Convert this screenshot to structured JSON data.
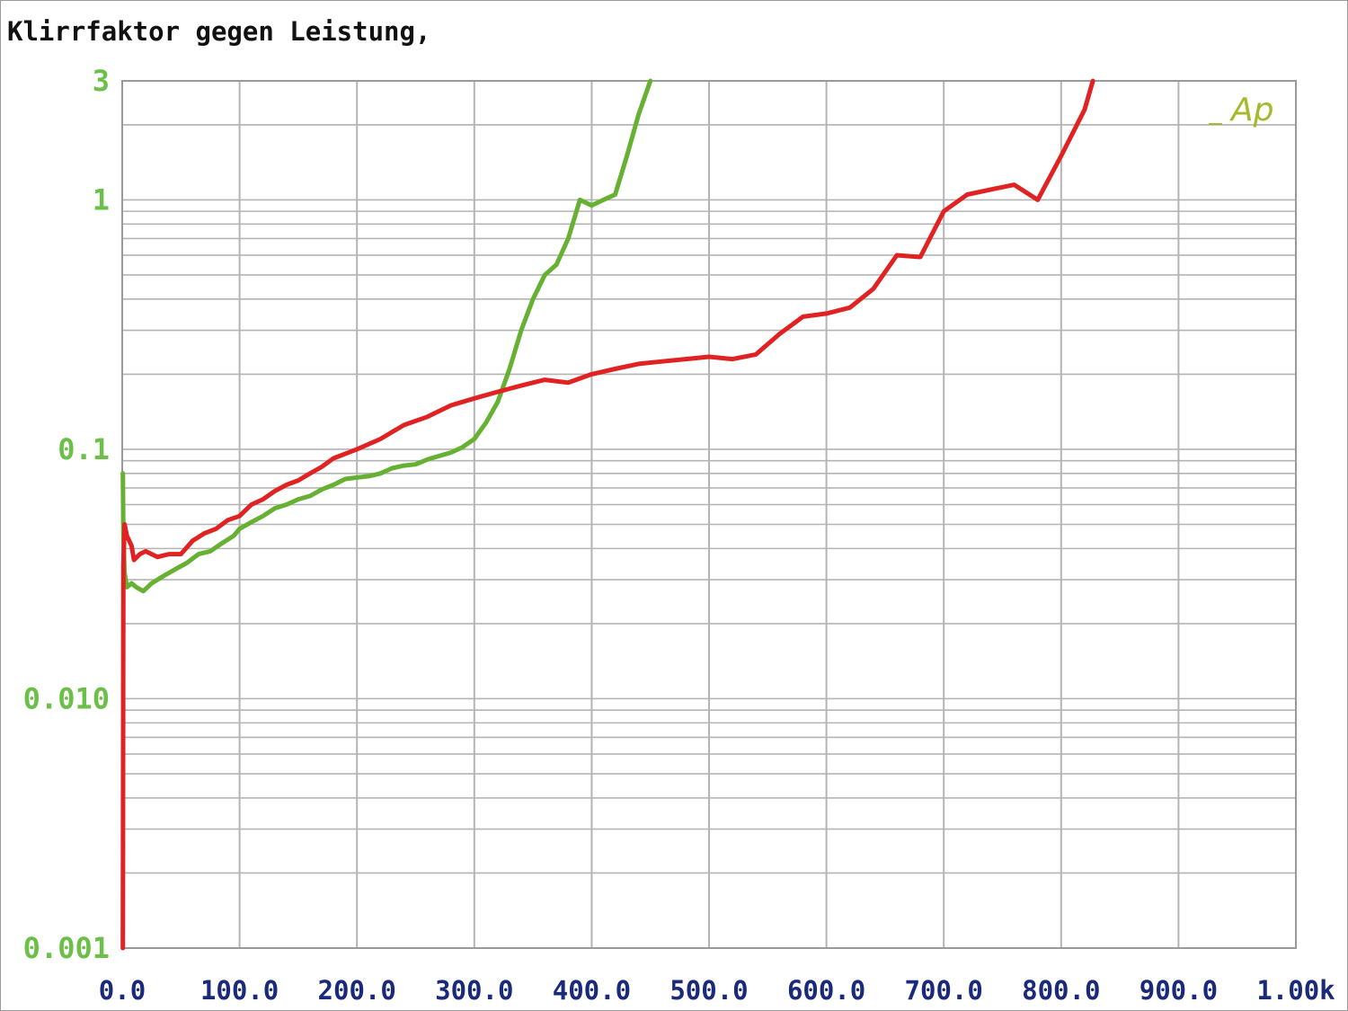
{
  "chart_data": {
    "type": "line",
    "title": "Klirrfaktor gegen Leistung,",
    "xlim": [
      0,
      1000
    ],
    "ylim": [
      0.001,
      3
    ],
    "y_scale": "log",
    "grid": true,
    "x_ticks": [
      {
        "value": 0,
        "label": "0.0"
      },
      {
        "value": 100,
        "label": "100.0"
      },
      {
        "value": 200,
        "label": "200.0"
      },
      {
        "value": 300,
        "label": "300.0"
      },
      {
        "value": 400,
        "label": "400.0"
      },
      {
        "value": 500,
        "label": "500.0"
      },
      {
        "value": 600,
        "label": "600.0"
      },
      {
        "value": 700,
        "label": "700.0"
      },
      {
        "value": 800,
        "label": "800.0"
      },
      {
        "value": 900,
        "label": "900.0"
      },
      {
        "value": 1000,
        "label": "1.00k"
      }
    ],
    "y_ticks": [
      {
        "value": 3,
        "label": "3"
      },
      {
        "value": 1,
        "label": "1"
      },
      {
        "value": 0.1,
        "label": "0.1"
      },
      {
        "value": 0.01,
        "label": "0.010"
      },
      {
        "value": 0.001,
        "label": "0.001"
      }
    ],
    "logo": "Ap",
    "colors": {
      "green_series": "#66b032",
      "red_series": "#e02222",
      "y_tick_labels": "#6cc04a",
      "x_tick_labels": "#1a2a7a",
      "grid": "#b4b4b4",
      "logo": "#a8b82c"
    },
    "series": [
      {
        "color": "#66b032",
        "x": [
          0.5,
          1,
          2,
          4,
          8,
          12,
          18,
          25,
          35,
          45,
          55,
          65,
          75,
          85,
          95,
          100,
          110,
          120,
          130,
          140,
          150,
          160,
          170,
          180,
          190,
          200,
          210,
          220,
          230,
          240,
          250,
          260,
          270,
          280,
          290,
          300,
          310,
          320,
          330,
          340,
          350,
          360,
          370,
          380,
          390,
          400,
          410,
          420,
          430,
          440,
          450
        ],
        "y": [
          0.08,
          0.045,
          0.032,
          0.028,
          0.029,
          0.028,
          0.027,
          0.029,
          0.031,
          0.033,
          0.035,
          0.038,
          0.039,
          0.042,
          0.045,
          0.048,
          0.051,
          0.054,
          0.058,
          0.06,
          0.063,
          0.065,
          0.069,
          0.072,
          0.076,
          0.077,
          0.078,
          0.08,
          0.084,
          0.086,
          0.087,
          0.091,
          0.094,
          0.097,
          0.102,
          0.11,
          0.128,
          0.155,
          0.21,
          0.3,
          0.4,
          0.5,
          0.55,
          0.7,
          1.0,
          0.95,
          1.0,
          1.05,
          1.5,
          2.2,
          3.0
        ]
      },
      {
        "color": "#e02222",
        "x": [
          0.5,
          1,
          2,
          4,
          6,
          8,
          10,
          15,
          20,
          25,
          30,
          40,
          50,
          60,
          70,
          80,
          90,
          100,
          110,
          120,
          130,
          140,
          150,
          160,
          170,
          180,
          200,
          220,
          240,
          260,
          280,
          300,
          320,
          340,
          360,
          380,
          400,
          420,
          440,
          460,
          480,
          500,
          520,
          540,
          560,
          580,
          600,
          620,
          640,
          660,
          680,
          700,
          720,
          740,
          760,
          780,
          800,
          820,
          827
        ],
        "y": [
          0.001,
          0.034,
          0.05,
          0.045,
          0.043,
          0.041,
          0.036,
          0.038,
          0.039,
          0.038,
          0.037,
          0.038,
          0.038,
          0.043,
          0.046,
          0.048,
          0.052,
          0.054,
          0.06,
          0.063,
          0.068,
          0.072,
          0.075,
          0.08,
          0.085,
          0.092,
          0.1,
          0.11,
          0.125,
          0.135,
          0.15,
          0.16,
          0.17,
          0.18,
          0.19,
          0.185,
          0.2,
          0.21,
          0.22,
          0.225,
          0.23,
          0.235,
          0.23,
          0.24,
          0.29,
          0.34,
          0.35,
          0.37,
          0.44,
          0.6,
          0.59,
          0.9,
          1.05,
          1.1,
          1.15,
          1.0,
          1.5,
          2.3,
          3.0
        ]
      }
    ]
  }
}
